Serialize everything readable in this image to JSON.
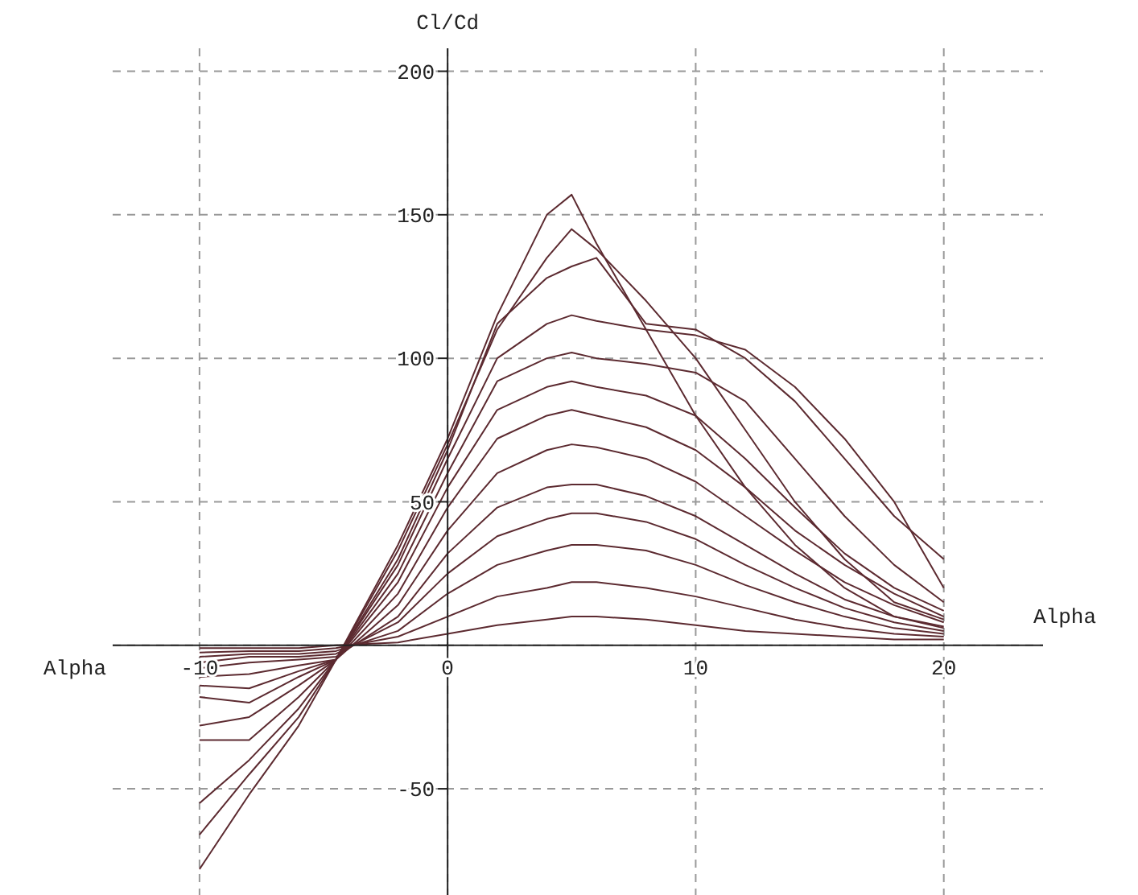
{
  "chart_data": {
    "type": "line",
    "xlabel": "Alpha",
    "ylabel": "Cl/Cd",
    "annotations": [
      "Alpha"
    ],
    "x": [
      -10,
      -8,
      -6,
      -4.5,
      -2,
      0,
      2,
      4,
      5,
      6,
      8,
      10,
      12,
      14,
      16,
      18,
      20
    ],
    "xlim": [
      -13.5,
      24
    ],
    "ylim": [
      -87,
      208
    ],
    "xticks": [
      -10,
      0,
      10,
      20
    ],
    "yticks": [
      -50,
      {
        "value": 0,
        "label": null
      },
      50,
      100,
      150,
      200
    ],
    "grid": true,
    "marker": "none",
    "line_style": "solid",
    "series": [
      {
        "color": "#5c2a30",
        "values": [
          -78,
          -52,
          -28,
          -5,
          35,
          72,
          115,
          150,
          157,
          140,
          110,
          80,
          55,
          35,
          20,
          10,
          6
        ]
      },
      {
        "color": "#5c2a30",
        "values": [
          -66,
          -45,
          -25,
          -5,
          33,
          70,
          110,
          135,
          145,
          138,
          120,
          100,
          75,
          50,
          30,
          15,
          9
        ]
      },
      {
        "color": "#5c2a30",
        "values": [
          -55,
          -40,
          -22,
          -5,
          30,
          68,
          112,
          128,
          132,
          135,
          112,
          110,
          100,
          85,
          65,
          45,
          30
        ]
      },
      {
        "color": "#5c2a30",
        "values": [
          -33,
          -33,
          -18,
          -5,
          28,
          65,
          100,
          112,
          115,
          113,
          110,
          108,
          103,
          90,
          72,
          50,
          20
        ]
      },
      {
        "color": "#5c2a30",
        "values": [
          -28,
          -25,
          -14,
          -5,
          25,
          60,
          92,
          100,
          102,
          100,
          98,
          95,
          85,
          65,
          45,
          28,
          15
        ]
      },
      {
        "color": "#5c2a30",
        "values": [
          -18,
          -20,
          -11,
          -5,
          22,
          55,
          82,
          90,
          92,
          90,
          87,
          80,
          65,
          48,
          32,
          20,
          12
        ]
      },
      {
        "color": "#5c2a30",
        "values": [
          -14,
          -15,
          -9,
          -5,
          18,
          48,
          72,
          80,
          82,
          80,
          76,
          68,
          55,
          40,
          28,
          18,
          10
        ]
      },
      {
        "color": "#5c2a30",
        "values": [
          -11,
          -10,
          -7,
          -5,
          14,
          40,
          60,
          68,
          70,
          69,
          65,
          57,
          45,
          33,
          22,
          14,
          8
        ]
      },
      {
        "color": "#5c2a30",
        "values": [
          -8,
          -6,
          -5,
          -4,
          10,
          32,
          48,
          55,
          56,
          56,
          52,
          45,
          35,
          25,
          16,
          10,
          6.5
        ]
      },
      {
        "color": "#5c2a30",
        "values": [
          -6,
          -4,
          -4,
          -3,
          8,
          25,
          38,
          44,
          46,
          46,
          43,
          37,
          28,
          20,
          13,
          8,
          5
        ]
      },
      {
        "color": "#5c2a30",
        "values": [
          -4,
          -3,
          -3,
          -2,
          5,
          18,
          28,
          33,
          35,
          35,
          33,
          28,
          21,
          15,
          10,
          6,
          4
        ]
      },
      {
        "color": "#5c2a30",
        "values": [
          -2.5,
          -2,
          -2,
          -1,
          3,
          10,
          17,
          20,
          22,
          22,
          20,
          17,
          13,
          9,
          6,
          4,
          3
        ]
      },
      {
        "color": "#5c2a30",
        "values": [
          -1,
          -1,
          -1,
          0,
          1,
          4,
          7,
          9,
          10,
          10,
          9,
          7,
          5,
          4,
          3,
          2,
          2
        ]
      }
    ]
  }
}
